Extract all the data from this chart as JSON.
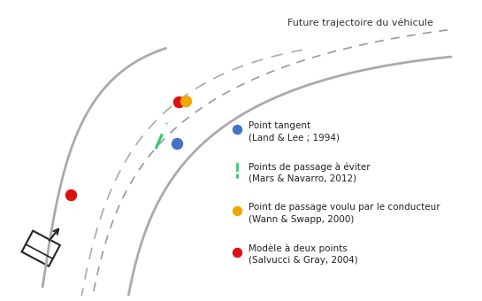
{
  "title": "Future trajectoire du véhicule",
  "title_fontsize": 8,
  "bg_color": "#ffffff",
  "road_color": "#aaaaaa",
  "green_dashed_color": "#2ecc71",
  "blue_dot_color": "#4472c4",
  "yellow_dot_color": "#f0a800",
  "red_dot_color": "#dd1111",
  "legend_items": [
    {
      "label1": "Point tangent",
      "label2": "(Land & Lee ; 1994)",
      "type": "circle",
      "color": "#4472c4"
    },
    {
      "label1": "Points de passage à éviter",
      "label2": "(Mars & Navarro, 2012)",
      "type": "line",
      "color": "#2ecc71"
    },
    {
      "label1": "Point de passage voulu par le conducteur",
      "label2": "(Wann & Swapp, 2000)",
      "type": "circle",
      "color": "#f0a800"
    },
    {
      "label1": "Modèle à deux points",
      "label2": "(Salvucci & Gray, 2004)",
      "type": "circle",
      "color": "#dd1111"
    }
  ],
  "font_size_legend": 7.5
}
